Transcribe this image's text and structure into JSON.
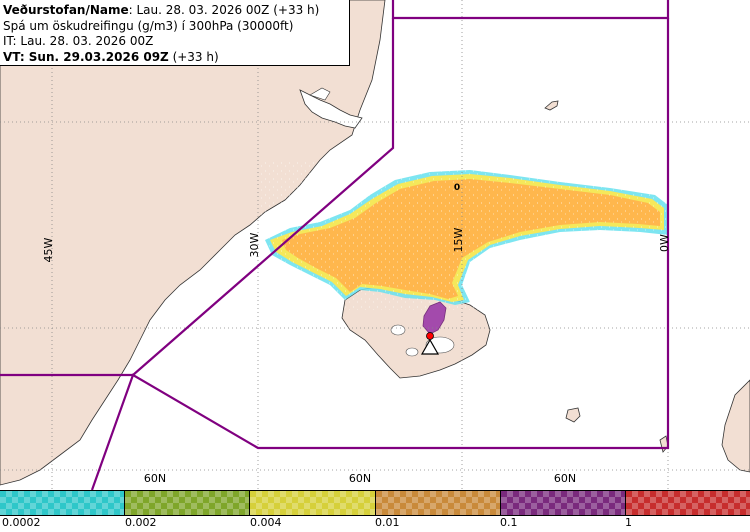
{
  "header": {
    "line1_bold": "Veðurstofan/Name",
    "line1_rest": ": Lau. 28. 03. 2026 00Z (+33 h)",
    "line2": "Spá um öskudreifingu (g/m3) í 300hPa (30000ft)",
    "line3": "IT: Lau. 28. 03. 2026 00Z",
    "line4_bold": "VT: Sun. 29.03.2026 09Z",
    "line4_rest": " (+33 h)"
  },
  "map": {
    "colors": {
      "ocean": "#ffffff",
      "land": "#f2dfd3",
      "coast": "#333333",
      "fir_boundary": "#800080",
      "gridline": "#888888",
      "ash_orange": "#ffb74d",
      "ash_yellow": "#f5e85a",
      "ash_cyan": "#66e0ee",
      "ash_purple": "#9b3aa8"
    },
    "lon_labels": [
      "45W",
      "30W",
      "15W",
      "0W"
    ],
    "lat_labels": [
      "60N",
      "60N",
      "60N"
    ],
    "point_marker": "0",
    "volcano_marker": "triangle-volcano-icon"
  },
  "legend": {
    "colors": [
      "#2ec7c9",
      "#7fa62a",
      "#d6d03a",
      "#c98a3a",
      "#7a2a7d",
      "#c72d2d"
    ],
    "tick_labels": [
      "0.0002",
      "0.002",
      "0.004",
      "0.01",
      "0.1",
      "1"
    ]
  }
}
